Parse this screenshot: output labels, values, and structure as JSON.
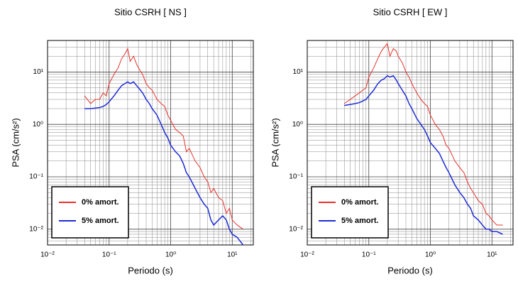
{
  "chart_data": [
    {
      "type": "line",
      "title": "Sitio CSRH [ NS ]",
      "xlabel": "Periodo (s)",
      "ylabel": "PSA (cm/s²)",
      "xscale": "log",
      "yscale": "log",
      "grid": true,
      "legend": "lower left",
      "xlim": [
        0.01,
        22
      ],
      "ylim": [
        0.005,
        40
      ],
      "xticks": [
        {
          "value": 0.01,
          "label": "10⁻²"
        },
        {
          "value": 0.1,
          "label": "10⁻¹"
        },
        {
          "value": 1,
          "label": "10⁰"
        },
        {
          "value": 10,
          "label": "10¹"
        }
      ],
      "yticks": [
        {
          "value": 0.01,
          "label": "10⁻²"
        },
        {
          "value": 0.1,
          "label": "10⁻¹"
        },
        {
          "value": 1,
          "label": "10⁰"
        },
        {
          "value": 10,
          "label": "10¹"
        }
      ],
      "x": [
        0.04,
        0.05,
        0.06,
        0.07,
        0.08,
        0.09,
        0.1,
        0.12,
        0.14,
        0.16,
        0.18,
        0.2,
        0.22,
        0.25,
        0.28,
        0.3,
        0.35,
        0.4,
        0.45,
        0.5,
        0.6,
        0.7,
        0.8,
        0.9,
        1,
        1.2,
        1.4,
        1.6,
        1.8,
        2,
        2.5,
        3,
        3.5,
        4,
        4.5,
        5,
        6,
        7,
        8,
        9,
        10,
        12,
        15
      ],
      "series": [
        {
          "name": "0% amort.",
          "color": "#e8302a",
          "values": [
            3.5,
            2.5,
            3,
            3,
            4,
            3.5,
            6,
            9,
            12,
            18,
            22,
            28,
            16,
            20,
            14,
            12,
            9,
            6,
            5,
            4.5,
            3,
            2.5,
            2.2,
            1.5,
            1.2,
            0.8,
            0.7,
            0.6,
            0.3,
            0.35,
            0.2,
            0.15,
            0.1,
            0.08,
            0.05,
            0.06,
            0.04,
            0.035,
            0.02,
            0.025,
            0.015,
            0.012,
            0.01
          ]
        },
        {
          "name": "5% amort.",
          "color": "#1c2bd6",
          "values": [
            2,
            2,
            2.05,
            2.1,
            2.2,
            2.4,
            2.7,
            3.5,
            4.5,
            5.5,
            6,
            6.5,
            6,
            6.5,
            5.5,
            5,
            4,
            3,
            2.5,
            2,
            1.5,
            1,
            0.7,
            0.55,
            0.4,
            0.3,
            0.25,
            0.18,
            0.12,
            0.1,
            0.06,
            0.04,
            0.03,
            0.025,
            0.015,
            0.012,
            0.015,
            0.018,
            0.015,
            0.01,
            0.008,
            0.007,
            0.005
          ]
        }
      ]
    },
    {
      "type": "line",
      "title": "Sitio CSRH [ EW ]",
      "xlabel": "Periodo (s)",
      "ylabel": "PSA (cm/s²)",
      "xscale": "log",
      "yscale": "log",
      "grid": true,
      "legend": "lower left",
      "xlim": [
        0.01,
        22
      ],
      "ylim": [
        0.005,
        40
      ],
      "xticks": [
        {
          "value": 0.01,
          "label": "10⁻²"
        },
        {
          "value": 0.1,
          "label": "10⁻¹"
        },
        {
          "value": 1,
          "label": "10⁰"
        },
        {
          "value": 10,
          "label": "10¹"
        }
      ],
      "yticks": [
        {
          "value": 0.01,
          "label": "10⁻²"
        },
        {
          "value": 0.1,
          "label": "10⁻¹"
        },
        {
          "value": 1,
          "label": "10⁰"
        },
        {
          "value": 10,
          "label": "10¹"
        }
      ],
      "x": [
        0.04,
        0.05,
        0.06,
        0.07,
        0.08,
        0.09,
        0.1,
        0.12,
        0.14,
        0.16,
        0.18,
        0.2,
        0.22,
        0.25,
        0.28,
        0.3,
        0.35,
        0.4,
        0.45,
        0.5,
        0.6,
        0.7,
        0.8,
        0.9,
        1,
        1.2,
        1.4,
        1.6,
        1.8,
        2,
        2.5,
        3,
        3.5,
        4,
        4.5,
        5,
        6,
        7,
        8,
        9,
        10,
        12,
        15
      ],
      "series": [
        {
          "name": "0% amort.",
          "color": "#e8302a",
          "values": [
            2.5,
            3,
            3.5,
            4,
            4.5,
            5,
            8,
            12,
            18,
            25,
            30,
            35,
            20,
            28,
            25,
            20,
            15,
            10,
            8,
            6,
            4,
            3,
            2.5,
            2.2,
            1.5,
            1,
            0.8,
            0.6,
            0.4,
            0.35,
            0.2,
            0.15,
            0.12,
            0.08,
            0.06,
            0.05,
            0.035,
            0.03,
            0.02,
            0.018,
            0.015,
            0.012,
            0.012
          ]
        },
        {
          "name": "5% amort.",
          "color": "#1c2bd6",
          "values": [
            2.3,
            2.4,
            2.5,
            2.6,
            2.8,
            3,
            3.5,
            4.5,
            6,
            7,
            7.5,
            8.5,
            8,
            8.5,
            7,
            6,
            4.5,
            3.5,
            2.5,
            2,
            1.3,
            1,
            0.8,
            0.6,
            0.45,
            0.35,
            0.28,
            0.2,
            0.15,
            0.12,
            0.07,
            0.05,
            0.04,
            0.03,
            0.025,
            0.018,
            0.015,
            0.012,
            0.01,
            0.01,
            0.009,
            0.009,
            0.008
          ]
        }
      ]
    }
  ]
}
